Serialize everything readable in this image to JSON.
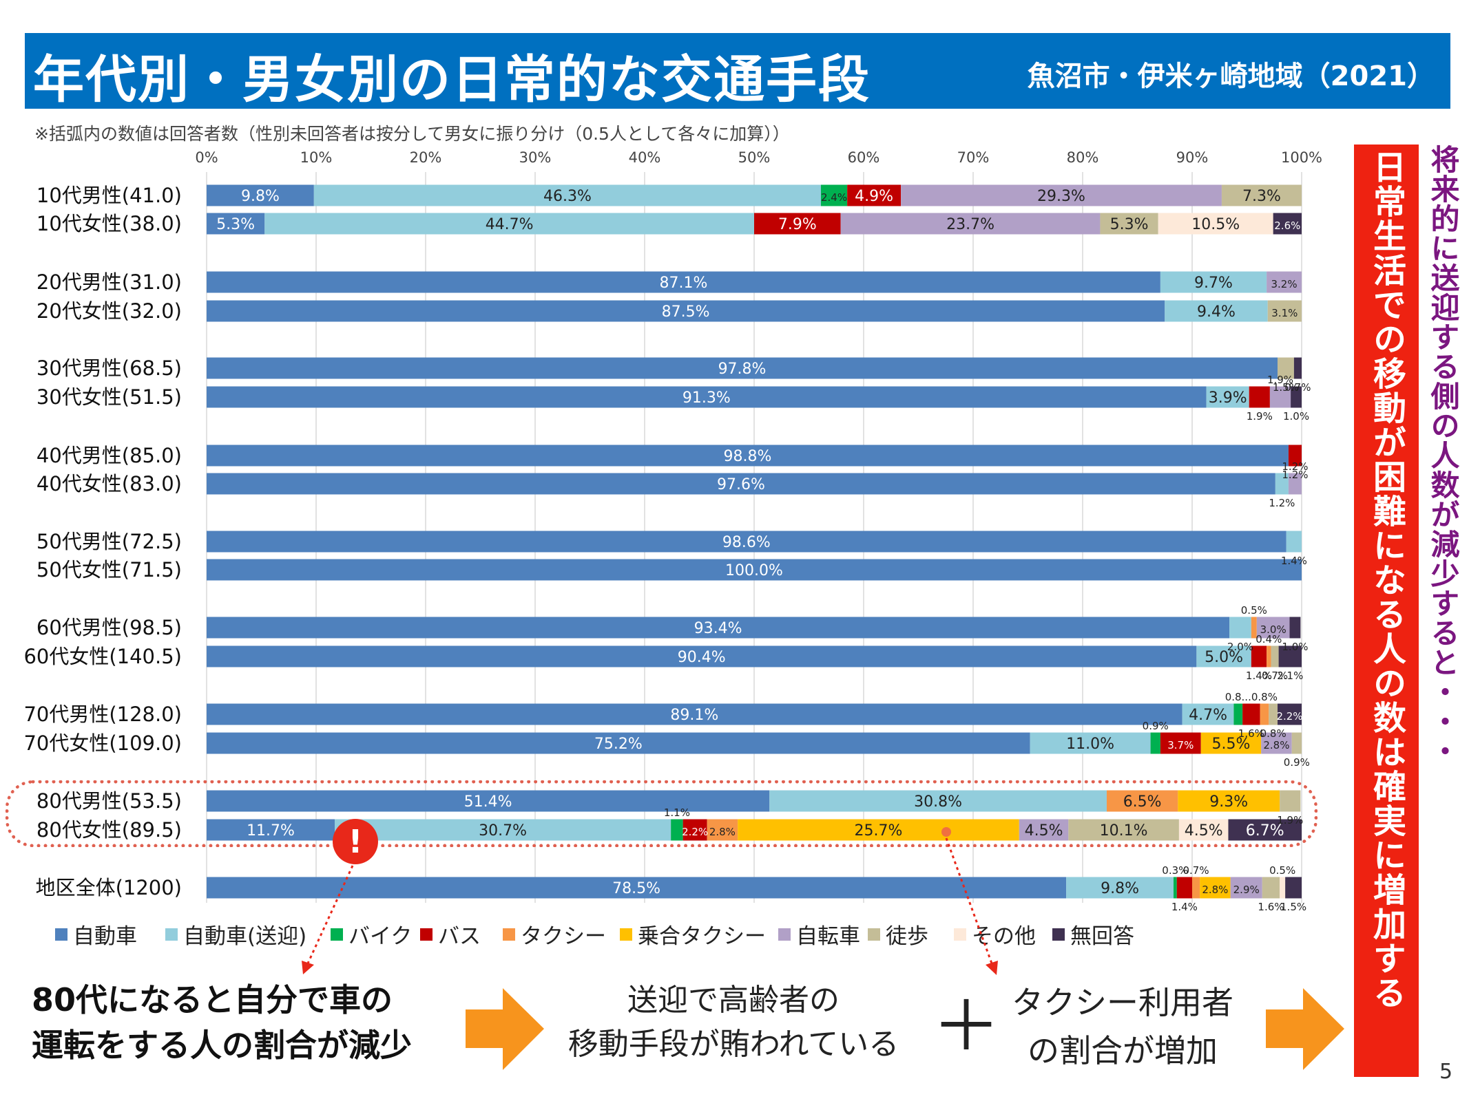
{
  "header": {
    "title": "年代別・男女別の日常的な交通手段",
    "region": "魚沼市・伊米ヶ崎地域（2021）"
  },
  "note": "※括弧内の数値は回答者数（性別未回答者は按分して男女に振り分け（0.5人として各々に加算））",
  "colors": {
    "banner": "#0070c0",
    "自動車": "#4f81bd",
    "自動車（送迎）": "#92cddc",
    "バイク": "#00b050",
    "バス": "#c00000",
    "タクシー": "#f79646",
    "乗合タクシー": "#ffc000",
    "自転車": "#b1a0c7",
    "徒歩": "#c4bd97",
    "その他": "#fde9d9",
    "無回答": "#3f3151",
    "alert": "#e8281a",
    "arrow": "#f7941d"
  },
  "chart_data": {
    "type": "bar",
    "orientation": "horizontal-stacked-100",
    "xlim": [
      0,
      100
    ],
    "xticks": [
      "0%",
      "10%",
      "20%",
      "30%",
      "40%",
      "50%",
      "60%",
      "70%",
      "80%",
      "90%",
      "100%"
    ],
    "series_names": [
      "自動車",
      "自動車(送迎)",
      "バイク",
      "バス",
      "タクシー",
      "乗合タクシー",
      "自転車",
      "徒歩",
      "その他",
      "無回答"
    ],
    "legend_position": "bottom",
    "grid": true,
    "rows": [
      {
        "label": "10代男性(41.0)",
        "values": [
          9.8,
          46.3,
          2.4,
          4.9,
          0,
          0,
          29.3,
          7.3,
          0,
          0
        ]
      },
      {
        "label": "10代女性(38.0)",
        "values": [
          5.3,
          44.7,
          0,
          7.9,
          0,
          0,
          23.7,
          5.3,
          10.5,
          2.6
        ]
      },
      {
        "label": "20代男性(31.0)",
        "values": [
          87.1,
          9.7,
          0,
          0,
          0,
          0,
          3.2,
          0,
          0,
          0
        ]
      },
      {
        "label": "20代女性(32.0)",
        "values": [
          87.5,
          9.4,
          0,
          0,
          0,
          0,
          0,
          3.1,
          0,
          0
        ]
      },
      {
        "label": "30代男性(68.5)",
        "values": [
          97.8,
          0,
          0,
          0,
          0,
          0,
          0,
          1.5,
          0,
          0.7
        ]
      },
      {
        "label": "30代女性(51.5)",
        "values": [
          91.3,
          3.9,
          0,
          1.9,
          0,
          0,
          1.9,
          0,
          0,
          1.0
        ]
      },
      {
        "label": "40代男性(85.0)",
        "values": [
          98.8,
          0,
          0,
          1.2,
          0,
          0,
          0,
          0,
          0,
          0
        ]
      },
      {
        "label": "40代女性(83.0)",
        "values": [
          97.6,
          1.2,
          0,
          0,
          0,
          0,
          1.2,
          0,
          0,
          0
        ]
      },
      {
        "label": "50代男性(72.5)",
        "values": [
          98.6,
          1.4,
          0,
          0,
          0,
          0,
          0,
          0,
          0,
          0
        ]
      },
      {
        "label": "50代女性(71.5)",
        "values": [
          100.0,
          0,
          0,
          0,
          0,
          0,
          0,
          0,
          0,
          0
        ]
      },
      {
        "label": "60代男性(98.5)",
        "values": [
          93.4,
          2.0,
          0,
          0,
          0.5,
          0,
          3.0,
          0,
          0,
          1.0
        ]
      },
      {
        "label": "60代女性(140.5)",
        "values": [
          90.4,
          5.0,
          0,
          1.4,
          0.4,
          0,
          0,
          0.7,
          0,
          2.1
        ]
      },
      {
        "label": "70代男性(128.0)",
        "values": [
          89.1,
          4.7,
          0.8,
          1.6,
          0.8,
          0,
          0,
          0.8,
          0,
          2.2
        ]
      },
      {
        "label": "70代女性(109.0)",
        "values": [
          75.2,
          11.0,
          0.9,
          3.7,
          0,
          5.5,
          2.8,
          0.9,
          0,
          0
        ]
      },
      {
        "label": "80代男性(53.5)",
        "values": [
          51.4,
          30.8,
          0,
          0,
          6.5,
          9.3,
          0,
          1.9,
          0,
          0
        ]
      },
      {
        "label": "80代女性(89.5)",
        "values": [
          11.7,
          30.7,
          1.1,
          2.2,
          2.8,
          25.7,
          4.5,
          10.1,
          4.5,
          6.7
        ]
      },
      {
        "label": "地区全体(1200)",
        "values": [
          78.5,
          9.8,
          0.3,
          1.4,
          0.7,
          2.8,
          2.9,
          1.6,
          0.5,
          1.5
        ]
      }
    ]
  },
  "chart_labels": [
    {
      "row": 0,
      "seg": 0,
      "text": "9.8%"
    },
    {
      "row": 0,
      "seg": 1,
      "text": "46.3%"
    },
    {
      "row": 0,
      "seg": 2,
      "text": "2.4%"
    },
    {
      "row": 0,
      "seg": 3,
      "text": "4.9%"
    },
    {
      "row": 0,
      "seg": 6,
      "text": "29.3%"
    },
    {
      "row": 0,
      "seg": 7,
      "text": "7.3%"
    },
    {
      "row": 1,
      "seg": 0,
      "text": "5.3%"
    },
    {
      "row": 1,
      "seg": 1,
      "text": "44.7%"
    },
    {
      "row": 1,
      "seg": 3,
      "text": "7.9%"
    },
    {
      "row": 1,
      "seg": 6,
      "text": "23.7%"
    },
    {
      "row": 1,
      "seg": 7,
      "text": "5.3%"
    },
    {
      "row": 1,
      "seg": 8,
      "text": "10.5%"
    },
    {
      "row": 1,
      "seg": 9,
      "text": "2.6%"
    },
    {
      "row": 2,
      "seg": 0,
      "text": "87.1%"
    },
    {
      "row": 2,
      "seg": 1,
      "text": "9.7%"
    },
    {
      "row": 2,
      "seg": 6,
      "text": "3.2%"
    },
    {
      "row": 3,
      "seg": 0,
      "text": "87.5%"
    },
    {
      "row": 3,
      "seg": 1,
      "text": "9.4%"
    },
    {
      "row": 3,
      "seg": 7,
      "text": "3.1%"
    },
    {
      "row": 4,
      "seg": 0,
      "text": "97.8%"
    },
    {
      "row": 4,
      "seg": 7,
      "text": "1.5%"
    },
    {
      "row": 4,
      "seg": 9,
      "text": "0.7%"
    },
    {
      "row": 5,
      "seg": 0,
      "text": "91.3%"
    },
    {
      "row": 5,
      "seg": 1,
      "text": "3.9%"
    },
    {
      "row": 5,
      "seg": 3,
      "text": "1.9%"
    },
    {
      "row": 5,
      "seg": 6,
      "text": "1.9%"
    },
    {
      "row": 5,
      "seg": 9,
      "text": "1.0%"
    },
    {
      "row": 6,
      "seg": 0,
      "text": "98.8%"
    },
    {
      "row": 6,
      "seg": 3,
      "text": "1.2%"
    },
    {
      "row": 7,
      "seg": 0,
      "text": "97.6%"
    },
    {
      "row": 7,
      "seg": 1,
      "text": "1.2%"
    },
    {
      "row": 7,
      "seg": 6,
      "text": "1.2%"
    },
    {
      "row": 8,
      "seg": 0,
      "text": "98.6%"
    },
    {
      "row": 8,
      "seg": 1,
      "text": "1.4%"
    },
    {
      "row": 9,
      "seg": 0,
      "text": "100.0%"
    },
    {
      "row": 10,
      "seg": 0,
      "text": "93.4%"
    },
    {
      "row": 10,
      "seg": 1,
      "text": "2.0%"
    },
    {
      "row": 10,
      "seg": 4,
      "text": "0.5%"
    },
    {
      "row": 10,
      "seg": 6,
      "text": "3.0%"
    },
    {
      "row": 10,
      "seg": 9,
      "text": "1.0%"
    },
    {
      "row": 11,
      "seg": 0,
      "text": "90.4%"
    },
    {
      "row": 11,
      "seg": 1,
      "text": "5.0%"
    },
    {
      "row": 11,
      "seg": 3,
      "text": "1.4%"
    },
    {
      "row": 11,
      "seg": 4,
      "text": "0.4%"
    },
    {
      "row": 11,
      "seg": 7,
      "text": "0.7%"
    },
    {
      "row": 11,
      "seg": 9,
      "text": "2.1%"
    },
    {
      "row": 12,
      "seg": 0,
      "text": "89.1%"
    },
    {
      "row": 12,
      "seg": 1,
      "text": "4.7%"
    },
    {
      "row": 12,
      "seg": 2,
      "text": "0.8..."
    },
    {
      "row": 12,
      "seg": 3,
      "text": "1.6%"
    },
    {
      "row": 12,
      "seg": 4,
      "text": "0.8%"
    },
    {
      "row": 12,
      "seg": 7,
      "text": "0.8%"
    },
    {
      "row": 12,
      "seg": 9,
      "text": "2.2%"
    },
    {
      "row": 13,
      "seg": 0,
      "text": "75.2%"
    },
    {
      "row": 13,
      "seg": 1,
      "text": "11.0%"
    },
    {
      "row": 13,
      "seg": 2,
      "text": "0.9%"
    },
    {
      "row": 13,
      "seg": 3,
      "text": "3.7%"
    },
    {
      "row": 13,
      "seg": 5,
      "text": "5.5%"
    },
    {
      "row": 13,
      "seg": 6,
      "text": "2.8%"
    },
    {
      "row": 13,
      "seg": 7,
      "text": "0.9%"
    },
    {
      "row": 14,
      "seg": 0,
      "text": "51.4%"
    },
    {
      "row": 14,
      "seg": 1,
      "text": "30.8%"
    },
    {
      "row": 14,
      "seg": 4,
      "text": "6.5%"
    },
    {
      "row": 14,
      "seg": 5,
      "text": "9.3%"
    },
    {
      "row": 14,
      "seg": 7,
      "text": "1.9%"
    },
    {
      "row": 15,
      "seg": 0,
      "text": "11.7%"
    },
    {
      "row": 15,
      "seg": 1,
      "text": "30.7%"
    },
    {
      "row": 15,
      "seg": 2,
      "text": "1.1%"
    },
    {
      "row": 15,
      "seg": 3,
      "text": "2.2%"
    },
    {
      "row": 15,
      "seg": 4,
      "text": "2.8%"
    },
    {
      "row": 15,
      "seg": 5,
      "text": "25.7%"
    },
    {
      "row": 15,
      "seg": 6,
      "text": "4.5%"
    },
    {
      "row": 15,
      "seg": 7,
      "text": "10.1%"
    },
    {
      "row": 15,
      "seg": 8,
      "text": "4.5%"
    },
    {
      "row": 15,
      "seg": 9,
      "text": "6.7%"
    },
    {
      "row": 16,
      "seg": 0,
      "text": "78.5%"
    },
    {
      "row": 16,
      "seg": 1,
      "text": "9.8%"
    },
    {
      "row": 16,
      "seg": 2,
      "text": "0.3%"
    },
    {
      "row": 16,
      "seg": 3,
      "text": "1.4%"
    },
    {
      "row": 16,
      "seg": 4,
      "text": "0.7%"
    },
    {
      "row": 16,
      "seg": 5,
      "text": "2.8%"
    },
    {
      "row": 16,
      "seg": 6,
      "text": "2.9%"
    },
    {
      "row": 16,
      "seg": 7,
      "text": "1.6%"
    },
    {
      "row": 16,
      "seg": 8,
      "text": "0.5%"
    },
    {
      "row": 16,
      "seg": 9,
      "text": "1.5%"
    }
  ],
  "legend": [
    {
      "label": "自動車",
      "color": "#4f81bd"
    },
    {
      "label": "自動車(送迎)",
      "color": "#92cddc"
    },
    {
      "label": "バイク",
      "color": "#00b050"
    },
    {
      "label": "バス",
      "color": "#c00000"
    },
    {
      "label": "タクシー",
      "color": "#f79646"
    },
    {
      "label": "乗合タクシー",
      "color": "#ffc000"
    },
    {
      "label": "自転車",
      "color": "#b1a0c7"
    },
    {
      "label": "徒歩",
      "color": "#c4bd97"
    },
    {
      "label": "その他",
      "color": "#fde9d9"
    },
    {
      "label": "無回答",
      "color": "#3f3151"
    }
  ],
  "alert_icon": "!",
  "conclusion": {
    "left_line1": "80代になると自分で車の",
    "left_line2": "運転をする人の割合が減少",
    "mid1_line1": "送迎で高齢者の",
    "mid1_line2": "移動手段が賄われている",
    "plus": "＋",
    "mid2_line1": "タクシー利用者",
    "mid2_line2": "の割合が増加"
  },
  "vertical_red": "日常生活での移動が困難になる人の数は確実に増加する",
  "vertical_purple": "将来的に送迎する側の人数が減少すると・・・",
  "page_number": "5"
}
